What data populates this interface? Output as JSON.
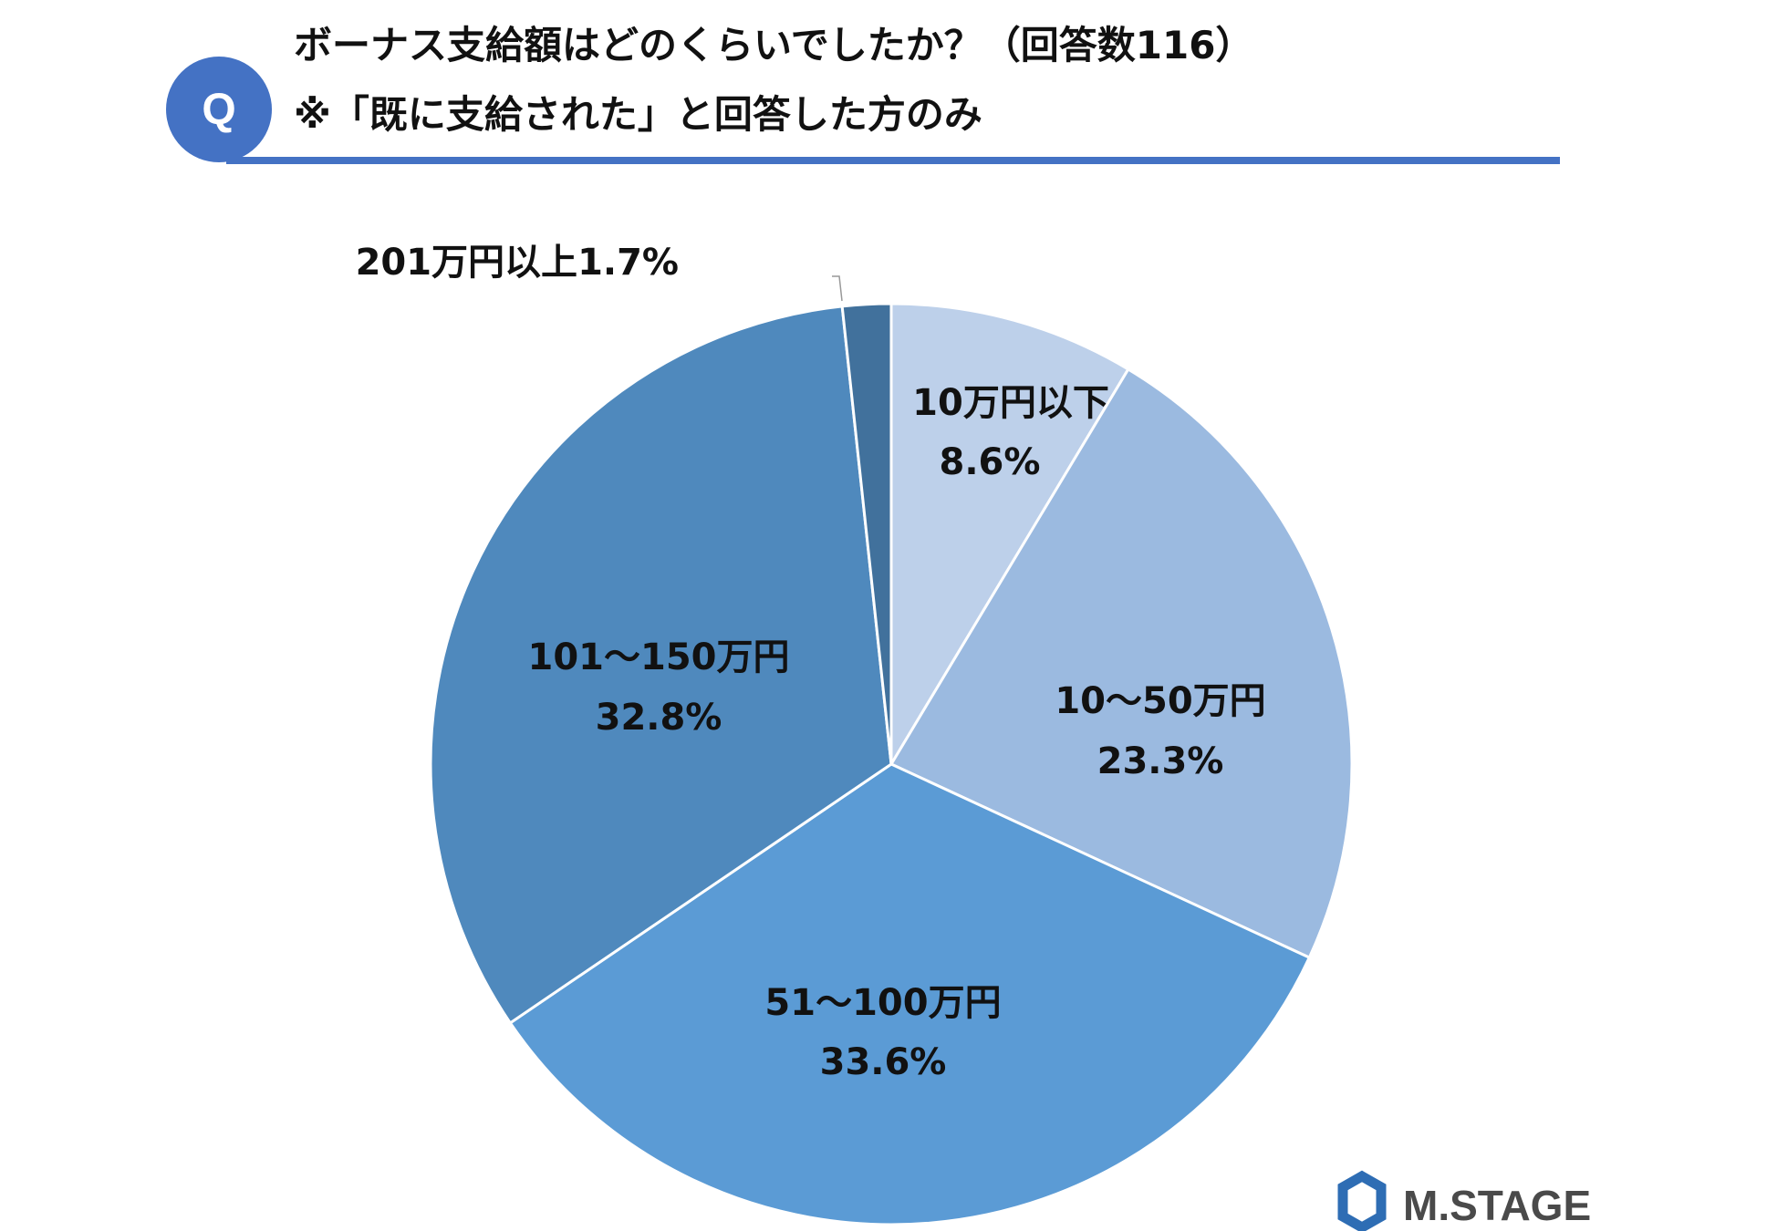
{
  "header": {
    "badge": "Q",
    "question_line1": "ボーナス支給額はどのくらいでしたか？（回答数116）",
    "question_line2": "※「既に支給された」と回答した方のみ"
  },
  "brand": {
    "name": "M.STAGE"
  },
  "colors": {
    "accent": "#4472C4",
    "slice_1": "#BDD0EA",
    "slice_2": "#9BBAE0",
    "slice_3": "#5B9BD5",
    "slice_4": "#4F89BD",
    "slice_5": "#41719C",
    "brand_mark": "#2E6DB4",
    "brand_text": "#4A4A4A"
  },
  "chart_data": {
    "type": "pie",
    "title": "ボーナス支給額はどのくらいでしたか？（回答数116）",
    "unit": "%",
    "start": "12 o'clock, clockwise",
    "slices": [
      {
        "label": "10万円以下",
        "value": 8.6,
        "display": "8.6%"
      },
      {
        "label": "10～50万円",
        "value": 23.3,
        "display": "23.3%"
      },
      {
        "label": "51～100万円",
        "value": 33.6,
        "display": "33.6%"
      },
      {
        "label": "101～150万円",
        "value": 32.8,
        "display": "32.8%"
      },
      {
        "label": "201万円以上",
        "value": 1.7,
        "display": "1.7%"
      }
    ]
  }
}
